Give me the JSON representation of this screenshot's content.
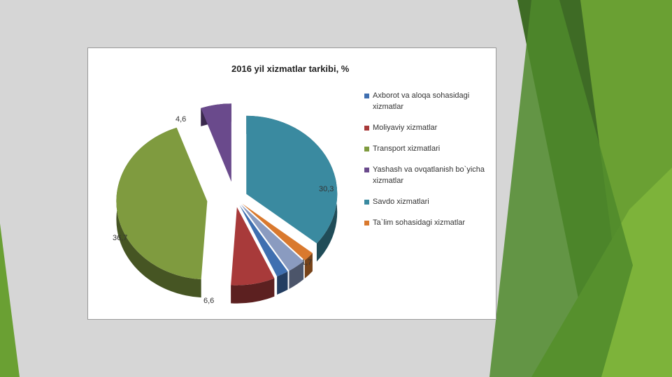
{
  "chart_data": {
    "type": "pie",
    "title": "2016 yil xizmatlar tarkibi, %",
    "legend_position": "right",
    "slices": [
      {
        "name": "Axborot va aloqa sohasidagi xizmatlar",
        "value": 1.8,
        "label": "1,8",
        "color": "#3f6fb0"
      },
      {
        "name": "Moliyaviy xizmatlar",
        "value": 6.6,
        "label": "6,6",
        "color": "#a83a3a"
      },
      {
        "name": "Transport xizmatlari",
        "value": 36.7,
        "label": "36,7",
        "color": "#7f9b3f"
      },
      {
        "name": "Yashash va ovqatlanish bo`yicha xizmatlar",
        "value": 4.6,
        "label": "4,6",
        "color": "#6a4a8c"
      },
      {
        "name": "Savdo xizmatlari",
        "value": 30.3,
        "label": "30,3",
        "color": "#3a8aa0"
      },
      {
        "name": "Ta`lim sohasidagi xizmatlar",
        "value": 1.7,
        "label": "1,7",
        "color": "#d9792e"
      }
    ],
    "extra_labels": [
      {
        "label": "2,7",
        "value": 2.7,
        "color": "#8a9bc0"
      }
    ]
  },
  "background": {
    "base": "#d6d6d6",
    "accent_dark": "#3e6b25",
    "accent_light": "#7db33a"
  }
}
